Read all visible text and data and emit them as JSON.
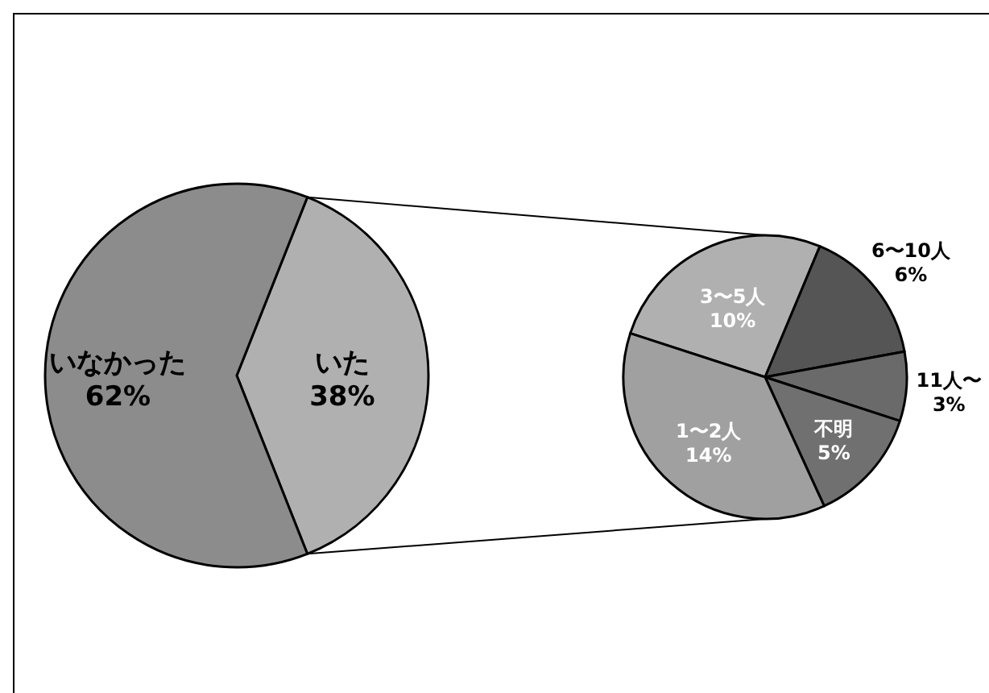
{
  "chart_data": [
    {
      "type": "pie",
      "categories": [
        "いた",
        "いなかった"
      ],
      "values": [
        38,
        62
      ],
      "value_labels": [
        "38%",
        "62%"
      ],
      "colors": [
        "#b0b0b0",
        "#8c8c8c"
      ]
    },
    {
      "type": "pie",
      "categories": [
        "3〜5人",
        "6〜10人",
        "11人〜",
        "不明",
        "1〜2人"
      ],
      "values": [
        10,
        6,
        3,
        5,
        14
      ],
      "value_labels": [
        "10%",
        "6%",
        "3%",
        "5%",
        "14%"
      ],
      "colors": [
        "#b0b0b0",
        "#555555",
        "#6a6a6a",
        "#707070",
        "#a0a0a0"
      ]
    }
  ]
}
